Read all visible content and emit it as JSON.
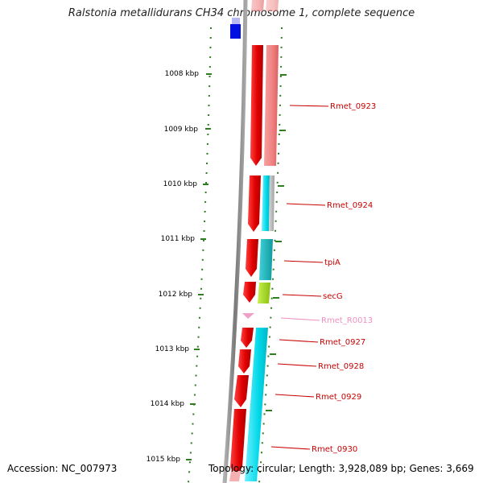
{
  "title": "Ralstonia metallidurans CH34 chromosome 1, complete sequence",
  "accession": "Accession: NC_007973",
  "topology": "Topology: circular; Length: 3,928,089 bp; Genes: 3,669",
  "colors": {
    "background": "#ffffff",
    "backbone": "#8a8a8a",
    "scale": "#2e7d1f",
    "gene_red": "#e00000",
    "gene_pink": "#f08080",
    "gene_cyan": "#00d8e8",
    "gene_teal": "#20b8c0",
    "gene_green": "#a8e020",
    "gene_blue": "#0010e0",
    "rna_pink": "#f0a0c8",
    "label_red": "#c80000",
    "label_pink": "#f090c0"
  },
  "scale_labels": [
    "1008 kbp",
    "1009 kbp",
    "1010 kbp",
    "1011 kbp",
    "1012 kbp",
    "1013 kbp",
    "1014 kbp",
    "1015 kbp"
  ],
  "gene_labels": [
    {
      "text": "Rmet_0923",
      "kind": "gene"
    },
    {
      "text": "Rmet_0924",
      "kind": "gene"
    },
    {
      "text": "tpiA",
      "kind": "gene"
    },
    {
      "text": "secG",
      "kind": "gene"
    },
    {
      "text": "Rmet_R0013",
      "kind": "rna"
    },
    {
      "text": "Rmet_0927",
      "kind": "gene"
    },
    {
      "text": "Rmet_0928",
      "kind": "gene"
    },
    {
      "text": "Rmet_0929",
      "kind": "gene"
    },
    {
      "text": "Rmet_0930",
      "kind": "gene"
    }
  ]
}
